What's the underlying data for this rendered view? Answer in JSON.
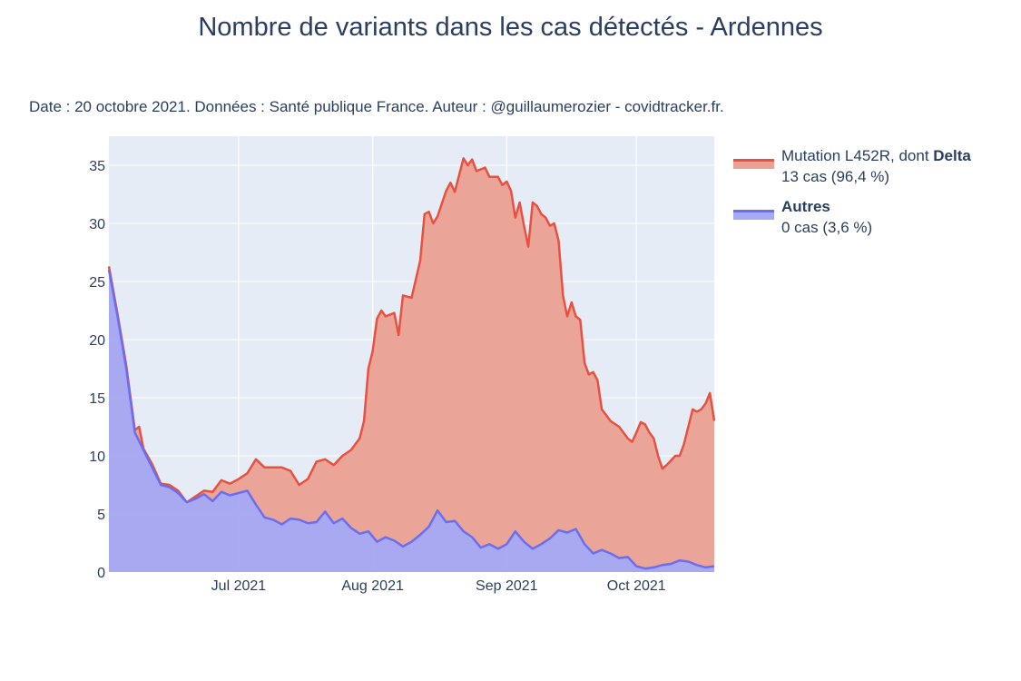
{
  "title": "Nombre de variants dans les cas détectés - Ardennes",
  "subtitle": "Date : 20 octobre 2021. Données : Santé publique France. Auteur : @guillaumerozier - covidtracker.fr.",
  "colors": {
    "delta_line": "#e8503f",
    "delta_fill": "#eaa092",
    "autres_line": "#6a6ef2",
    "autres_fill": "#a5aaf6",
    "plot_bg": "#e5ecf6",
    "grid": "#ffffff"
  },
  "legend": {
    "delta": {
      "name_prefix": "Mutation L452R, dont ",
      "name_bold": "Delta",
      "detail": "13 cas (96,4 %)"
    },
    "autres": {
      "name": "Autres",
      "detail": "0 cas (3,6 %)"
    }
  },
  "chart_data": {
    "type": "area",
    "stacked": true,
    "x_start": "2021-06-01",
    "x_end": "2021-10-19",
    "xticks": [
      {
        "label": "Jul 2021",
        "date": "2021-07-01"
      },
      {
        "label": "Aug 2021",
        "date": "2021-08-01"
      },
      {
        "label": "Sep 2021",
        "date": "2021-09-01"
      },
      {
        "label": "Oct 2021",
        "date": "2021-10-01"
      }
    ],
    "yticks": [
      0,
      5,
      10,
      15,
      20,
      25,
      30,
      35
    ],
    "ylim": [
      0,
      37.5
    ],
    "grid": true,
    "legend_position": "right",
    "series": [
      {
        "name": "Autres",
        "role": "autres",
        "points": [
          [
            "2021-06-01",
            26
          ],
          [
            "2021-06-03",
            22
          ],
          [
            "2021-06-05",
            17.5
          ],
          [
            "2021-06-07",
            12
          ],
          [
            "2021-06-09",
            10.5
          ],
          [
            "2021-06-11",
            9
          ],
          [
            "2021-06-13",
            7.5
          ],
          [
            "2021-06-15",
            7.3
          ],
          [
            "2021-06-17",
            6.8
          ],
          [
            "2021-06-19",
            6
          ],
          [
            "2021-06-21",
            6.3
          ],
          [
            "2021-06-23",
            6.7
          ],
          [
            "2021-06-25",
            6.1
          ],
          [
            "2021-06-27",
            6.9
          ],
          [
            "2021-06-29",
            6.6
          ],
          [
            "2021-07-01",
            6.8
          ],
          [
            "2021-07-03",
            7
          ],
          [
            "2021-07-05",
            5.8
          ],
          [
            "2021-07-07",
            4.7
          ],
          [
            "2021-07-09",
            4.5
          ],
          [
            "2021-07-11",
            4.1
          ],
          [
            "2021-07-13",
            4.6
          ],
          [
            "2021-07-15",
            4.5
          ],
          [
            "2021-07-17",
            4.2
          ],
          [
            "2021-07-19",
            4.3
          ],
          [
            "2021-07-21",
            5.2
          ],
          [
            "2021-07-23",
            4.2
          ],
          [
            "2021-07-25",
            4.6
          ],
          [
            "2021-07-27",
            3.8
          ],
          [
            "2021-07-29",
            3.3
          ],
          [
            "2021-07-31",
            3.5
          ],
          [
            "2021-08-02",
            2.6
          ],
          [
            "2021-08-04",
            3
          ],
          [
            "2021-08-06",
            2.7
          ],
          [
            "2021-08-08",
            2.2
          ],
          [
            "2021-08-10",
            2.6
          ],
          [
            "2021-08-12",
            3.2
          ],
          [
            "2021-08-14",
            3.9
          ],
          [
            "2021-08-16",
            5.3
          ],
          [
            "2021-08-18",
            4.3
          ],
          [
            "2021-08-20",
            4.4
          ],
          [
            "2021-08-22",
            3.5
          ],
          [
            "2021-08-24",
            3
          ],
          [
            "2021-08-26",
            2.1
          ],
          [
            "2021-08-28",
            2.4
          ],
          [
            "2021-08-30",
            2
          ],
          [
            "2021-09-01",
            2.4
          ],
          [
            "2021-09-03",
            3.5
          ],
          [
            "2021-09-05",
            2.6
          ],
          [
            "2021-09-07",
            2
          ],
          [
            "2021-09-09",
            2.4
          ],
          [
            "2021-09-11",
            2.9
          ],
          [
            "2021-09-13",
            3.6
          ],
          [
            "2021-09-15",
            3.4
          ],
          [
            "2021-09-17",
            3.7
          ],
          [
            "2021-09-19",
            2.4
          ],
          [
            "2021-09-21",
            1.6
          ],
          [
            "2021-09-23",
            1.9
          ],
          [
            "2021-09-25",
            1.6
          ],
          [
            "2021-09-27",
            1.2
          ],
          [
            "2021-09-29",
            1.3
          ],
          [
            "2021-10-01",
            0.5
          ],
          [
            "2021-10-03",
            0.3
          ],
          [
            "2021-10-05",
            0.4
          ],
          [
            "2021-10-07",
            0.6
          ],
          [
            "2021-10-09",
            0.7
          ],
          [
            "2021-10-11",
            1
          ],
          [
            "2021-10-13",
            0.9
          ],
          [
            "2021-10-15",
            0.6
          ],
          [
            "2021-10-17",
            0.4
          ],
          [
            "2021-10-19",
            0.5
          ]
        ]
      },
      {
        "name": "Mutation L452R, dont Delta",
        "role": "delta",
        "stack_total": true,
        "points": [
          [
            "2021-06-01",
            26.3
          ],
          [
            "2021-06-03",
            22.2
          ],
          [
            "2021-06-05",
            17.8
          ],
          [
            "2021-06-07",
            12.2
          ],
          [
            "2021-06-08",
            12.5
          ],
          [
            "2021-06-09",
            10.6
          ],
          [
            "2021-06-11",
            9.3
          ],
          [
            "2021-06-13",
            7.6
          ],
          [
            "2021-06-15",
            7.5
          ],
          [
            "2021-06-17",
            7
          ],
          [
            "2021-06-19",
            6
          ],
          [
            "2021-06-21",
            6.5
          ],
          [
            "2021-06-23",
            7
          ],
          [
            "2021-06-25",
            6.9
          ],
          [
            "2021-06-27",
            7.9
          ],
          [
            "2021-06-29",
            7.6
          ],
          [
            "2021-07-01",
            8
          ],
          [
            "2021-07-03",
            8.5
          ],
          [
            "2021-07-05",
            9.7
          ],
          [
            "2021-07-07",
            9
          ],
          [
            "2021-07-09",
            9
          ],
          [
            "2021-07-11",
            9
          ],
          [
            "2021-07-13",
            8.7
          ],
          [
            "2021-07-15",
            7.5
          ],
          [
            "2021-07-17",
            8
          ],
          [
            "2021-07-19",
            9.5
          ],
          [
            "2021-07-21",
            9.7
          ],
          [
            "2021-07-23",
            9.2
          ],
          [
            "2021-07-25",
            10
          ],
          [
            "2021-07-27",
            10.5
          ],
          [
            "2021-07-29",
            11.5
          ],
          [
            "2021-07-30",
            13
          ],
          [
            "2021-07-31",
            17.5
          ],
          [
            "2021-08-01",
            19
          ],
          [
            "2021-08-02",
            21.8
          ],
          [
            "2021-08-03",
            22.5
          ],
          [
            "2021-08-04",
            22
          ],
          [
            "2021-08-06",
            22.3
          ],
          [
            "2021-08-07",
            20.4
          ],
          [
            "2021-08-08",
            23.8
          ],
          [
            "2021-08-10",
            23.6
          ],
          [
            "2021-08-12",
            26.8
          ],
          [
            "2021-08-13",
            30.8
          ],
          [
            "2021-08-14",
            31
          ],
          [
            "2021-08-15",
            30
          ],
          [
            "2021-08-16",
            30.6
          ],
          [
            "2021-08-18",
            32.8
          ],
          [
            "2021-08-19",
            33.5
          ],
          [
            "2021-08-20",
            32.7
          ],
          [
            "2021-08-22",
            35.6
          ],
          [
            "2021-08-23",
            35
          ],
          [
            "2021-08-24",
            35.5
          ],
          [
            "2021-08-25",
            34.5
          ],
          [
            "2021-08-27",
            34.8
          ],
          [
            "2021-08-28",
            34
          ],
          [
            "2021-08-30",
            34
          ],
          [
            "2021-08-31",
            33.3
          ],
          [
            "2021-09-01",
            33.6
          ],
          [
            "2021-09-02",
            32.8
          ],
          [
            "2021-09-03",
            30.5
          ],
          [
            "2021-09-04",
            31.8
          ],
          [
            "2021-09-05",
            29.8
          ],
          [
            "2021-09-06",
            28
          ],
          [
            "2021-09-07",
            31.8
          ],
          [
            "2021-09-08",
            31.5
          ],
          [
            "2021-09-09",
            30.8
          ],
          [
            "2021-09-10",
            30.5
          ],
          [
            "2021-09-11",
            29.8
          ],
          [
            "2021-09-12",
            30
          ],
          [
            "2021-09-13",
            28.5
          ],
          [
            "2021-09-14",
            23.8
          ],
          [
            "2021-09-15",
            22
          ],
          [
            "2021-09-16",
            23.2
          ],
          [
            "2021-09-17",
            22
          ],
          [
            "2021-09-18",
            21.7
          ],
          [
            "2021-09-19",
            18
          ],
          [
            "2021-09-20",
            17
          ],
          [
            "2021-09-21",
            17.2
          ],
          [
            "2021-09-22",
            16.5
          ],
          [
            "2021-09-23",
            14
          ],
          [
            "2021-09-25",
            13
          ],
          [
            "2021-09-27",
            12.5
          ],
          [
            "2021-09-29",
            11.5
          ],
          [
            "2021-09-30",
            11.2
          ],
          [
            "2021-10-01",
            12
          ],
          [
            "2021-10-02",
            12.9
          ],
          [
            "2021-10-03",
            12.7
          ],
          [
            "2021-10-04",
            12
          ],
          [
            "2021-10-05",
            11.5
          ],
          [
            "2021-10-06",
            10
          ],
          [
            "2021-10-07",
            8.9
          ],
          [
            "2021-10-08",
            9.2
          ],
          [
            "2021-10-09",
            9.6
          ],
          [
            "2021-10-10",
            10
          ],
          [
            "2021-10-11",
            10
          ],
          [
            "2021-10-12",
            11
          ],
          [
            "2021-10-13",
            12.5
          ],
          [
            "2021-10-14",
            14
          ],
          [
            "2021-10-15",
            13.8
          ],
          [
            "2021-10-16",
            14
          ],
          [
            "2021-10-17",
            14.5
          ],
          [
            "2021-10-18",
            15.4
          ],
          [
            "2021-10-19",
            13
          ]
        ]
      }
    ]
  }
}
